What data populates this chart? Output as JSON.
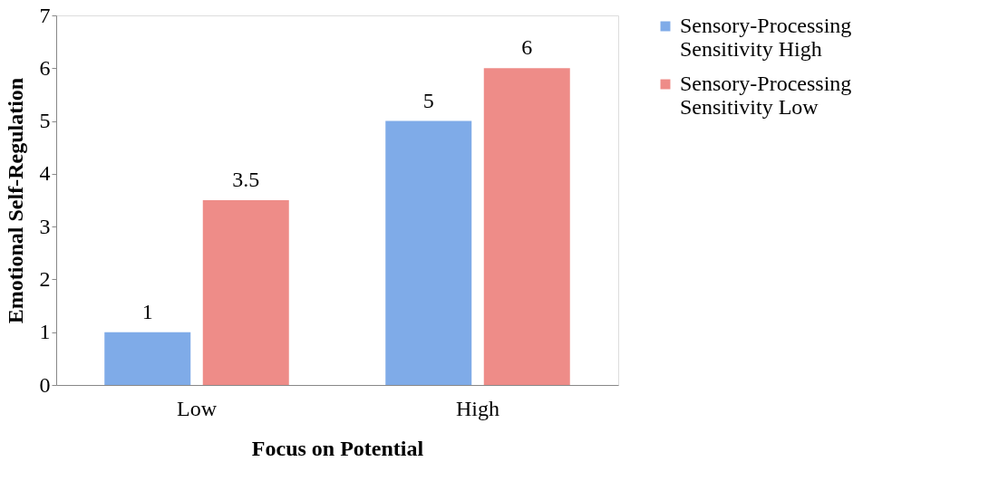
{
  "chart_data": {
    "type": "bar",
    "xlabel": "Focus on Potential",
    "ylabel": "Emotional Self-Regulation",
    "categories": [
      "Low",
      "High"
    ],
    "series": [
      {
        "name": "Sensory-Processing Sensitivity High",
        "color": "#7fabe8",
        "values": [
          1,
          5
        ]
      },
      {
        "name": "Sensory-Processing Sensitivity Low",
        "color": "#ee8c88",
        "values": [
          3.5,
          6
        ]
      }
    ],
    "ylim": [
      0,
      7
    ],
    "yticks": [
      0,
      1,
      2,
      3,
      4,
      5,
      6,
      7
    ],
    "grid": false,
    "legend": "right",
    "data_labels": true
  }
}
